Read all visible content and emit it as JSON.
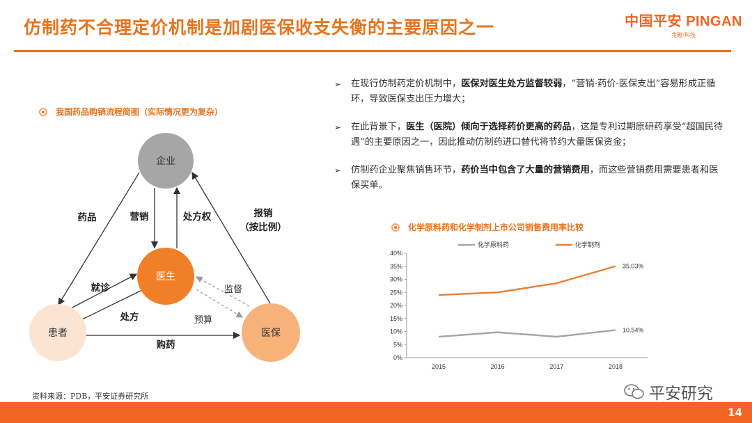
{
  "slide": {
    "title": "仿制药不合理定价机制是加剧医保收支失衡的主要原因之一",
    "logo_main": "中国平安 PINGAN",
    "logo_sub": "金融·科技",
    "page_number": "14",
    "source": "资料来源：PDB，平安证券研究所",
    "watermark": "平安研究"
  },
  "diagram": {
    "title": "我国药品购销流程简图（实际情况更为复杂）",
    "nodes": {
      "enterprise": "企业",
      "doctor": "医生",
      "patient": "患者",
      "insurance": "医保"
    },
    "edges": {
      "drugs": "药品",
      "marketing": "营销",
      "prescription_right": "处方权",
      "reimburse_1": "报销",
      "reimburse_2": "（按比例）",
      "visit": "就诊",
      "prescription": "处方",
      "purchase": "购药",
      "supervision": "监督",
      "budget": "预算"
    }
  },
  "points": [
    {
      "pre": "在现行仿制药定价机制中，",
      "bold": "医保对医生处方监督较弱",
      "post": "，“营销-药价-医保支出”容易形成正循环，导致医保支出压力增大；"
    },
    {
      "pre": "在此背景下，",
      "bold": "医生（医院）倾向于选择药价更高的药品",
      "post": "，这是专利过期原研药享受“超国民待遇”的主要原因之一，因此推动仿制药进口替代将节约大量医保资金；"
    },
    {
      "pre": "仿制药企业聚焦销售环节，",
      "bold": "药价当中包含了大量的营销费用",
      "post": "，而这些营销费用需要患者和医保买单。"
    }
  ],
  "chart_title": "化学原料药和化学制剂上市公司销售费用率比较",
  "chart_data": {
    "type": "line",
    "categories": [
      "2015",
      "2016",
      "2017",
      "2018"
    ],
    "series": [
      {
        "name": "化学原料药",
        "values": [
          8.0,
          9.7,
          8.0,
          10.54
        ],
        "color": "#a6a6a6"
      },
      {
        "name": "化学制剂",
        "values": [
          24.0,
          25.0,
          28.5,
          35.03
        ],
        "color": "#ed7d31"
      }
    ],
    "ylim": [
      0,
      40
    ],
    "yticks": [
      "0%",
      "5%",
      "10%",
      "15%",
      "20%",
      "25%",
      "30%",
      "35%",
      "40%"
    ],
    "end_labels": [
      "10.54%",
      "35.03%"
    ],
    "grid": false,
    "legend": "top"
  },
  "colors": {
    "accent": "#e8731e",
    "enterprise_node": "#a6a6a6",
    "doctor_node": "#f07f27",
    "patient_node": "#fce4d3",
    "insurance_node": "#f7b27a"
  }
}
